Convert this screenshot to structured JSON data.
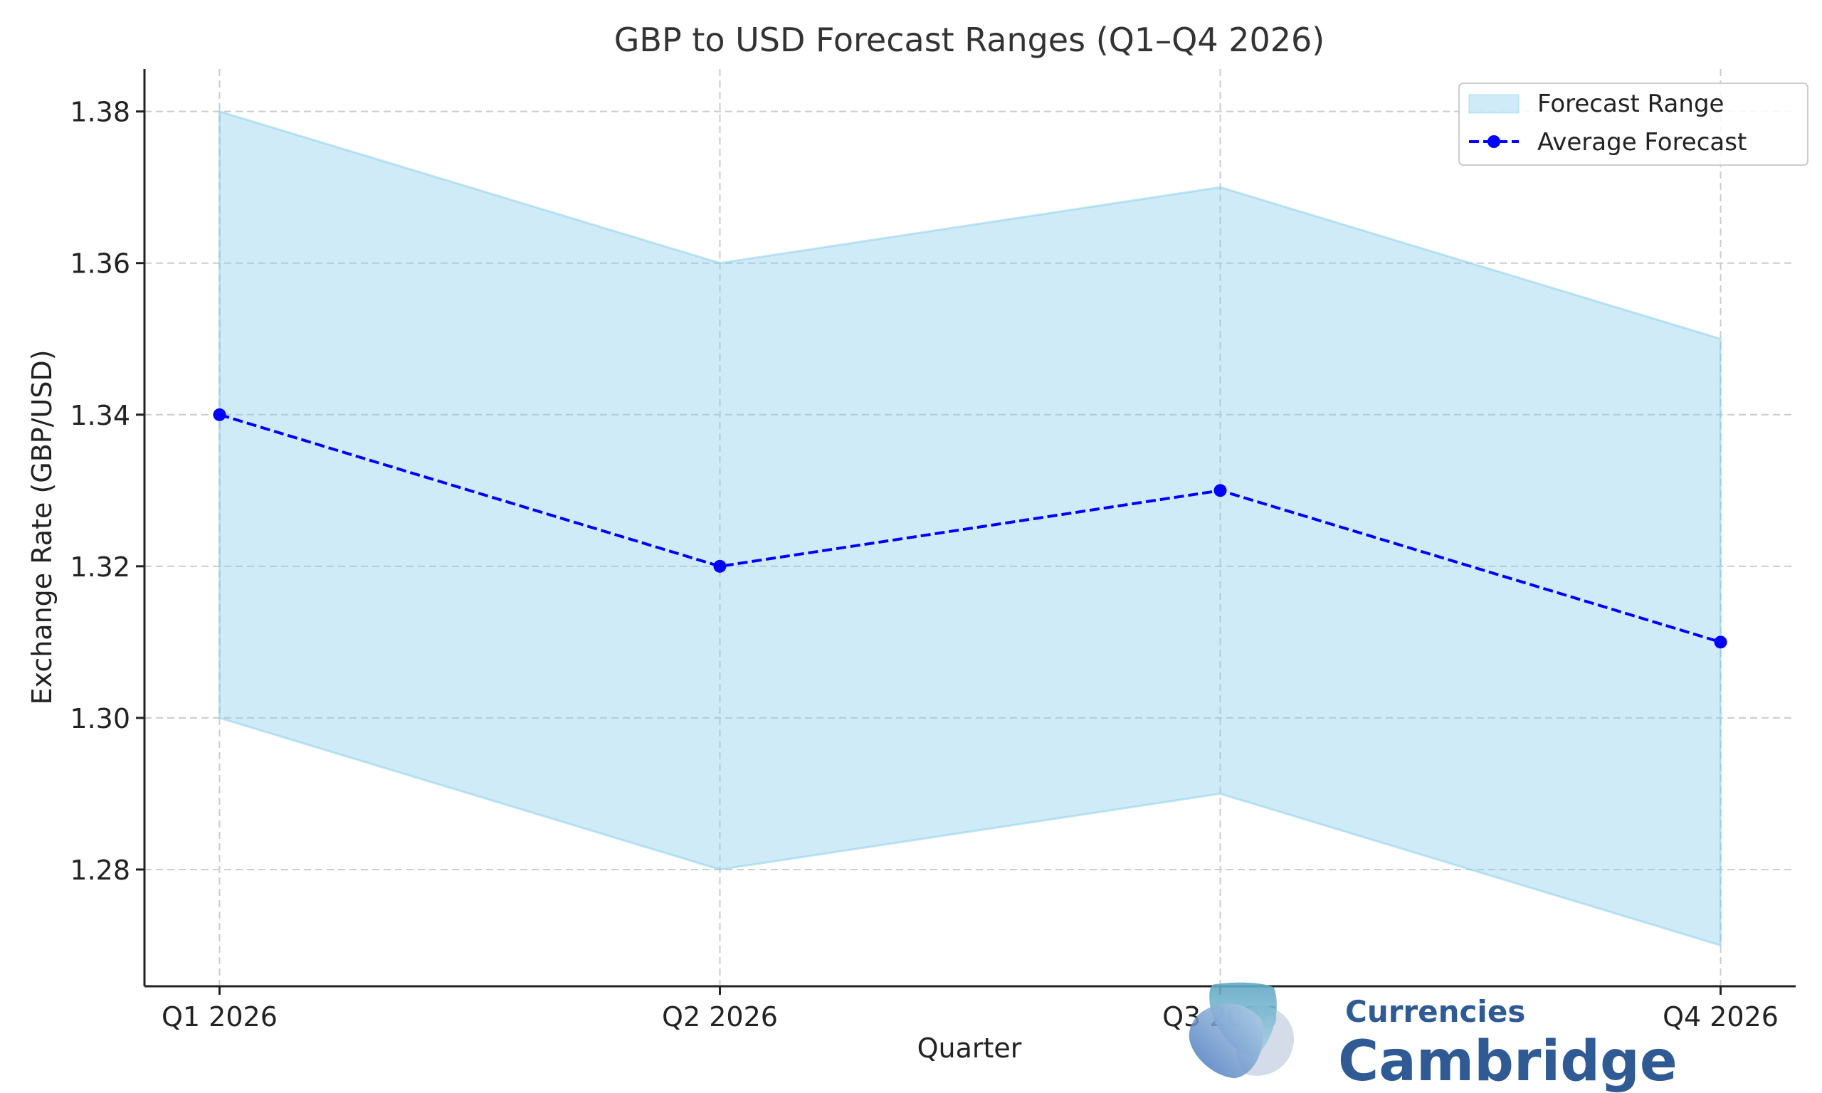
{
  "chart_data": {
    "type": "line",
    "title": "GBP to USD Forecast Ranges (Q1–Q4 2026)",
    "xlabel": "Quarter",
    "ylabel": "Exchange Rate (GBP/USD)",
    "categories": [
      "Q1 2026",
      "Q2 2026",
      "Q3 2026",
      "Q4 2026"
    ],
    "y_ticks": [
      "1.28",
      "1.30",
      "1.32",
      "1.34",
      "1.36",
      "1.38"
    ],
    "ylim": [
      1.2646,
      1.3856
    ],
    "grid": true,
    "legend_position": "top-right",
    "range": {
      "name": "Forecast Range",
      "low": [
        1.3,
        1.28,
        1.29,
        1.27
      ],
      "high": [
        1.38,
        1.36,
        1.37,
        1.35
      ],
      "color": "#87ceeb"
    },
    "series": [
      {
        "name": "Average Forecast",
        "values": [
          1.34,
          1.32,
          1.33,
          1.31
        ],
        "color": "#0000ff",
        "style": "dashed",
        "marker": "circle"
      }
    ]
  },
  "watermark": {
    "line1": "Cambridge",
    "line2": "Currencies",
    "color": "#2f5a94"
  }
}
